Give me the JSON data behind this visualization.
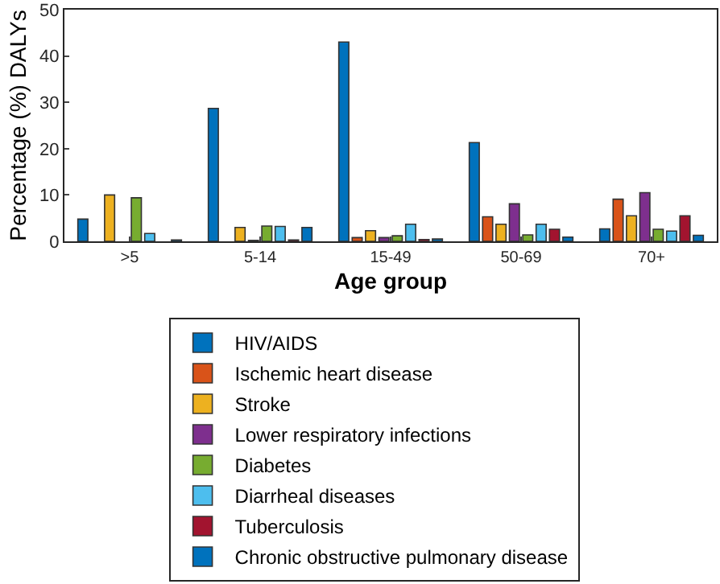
{
  "chart_data": {
    "type": "bar",
    "xlabel": "Age group",
    "ylabel": "Percentage (%) DALYs",
    "categories": [
      ">5",
      "5-14",
      "15-49",
      "50-69",
      "70+"
    ],
    "series": [
      {
        "name": "HIV/AIDS",
        "color": "#0072bd",
        "values": [
          4.8,
          28.7,
          43,
          21.3,
          2.7
        ]
      },
      {
        "name": "Ischemic heart disease",
        "color": "#d95319",
        "values": [
          null,
          null,
          0.8,
          5.3,
          9.1
        ]
      },
      {
        "name": "Stroke",
        "color": "#edb120",
        "values": [
          10,
          3,
          2.3,
          3.7,
          5.5
        ]
      },
      {
        "name": "Lower respiratory infections",
        "color": "#7e2f8e",
        "values": [
          null,
          0.2,
          0.8,
          8.1,
          10.5
        ]
      },
      {
        "name": "Diabetes",
        "color": "#77ac30",
        "values": [
          9.4,
          3.3,
          1.2,
          1.4,
          2.6
        ]
      },
      {
        "name": "Diarrheal diseases",
        "color": "#4dbeee",
        "values": [
          1.7,
          3.2,
          3.7,
          3.7,
          2.2
        ]
      },
      {
        "name": "Tuberculosis",
        "color": "#a2142f",
        "values": [
          null,
          0.3,
          0.4,
          2.6,
          5.5
        ]
      },
      {
        "name": "Chronic obstructive pulmonary disease",
        "color": "#0072bd",
        "values": [
          0.3,
          3,
          0.5,
          0.9,
          1.3
        ]
      }
    ],
    "ylim": [
      0,
      50
    ],
    "yticks": [
      0,
      10,
      20,
      30,
      40,
      50
    ],
    "grid": false,
    "legend": "bottom"
  }
}
